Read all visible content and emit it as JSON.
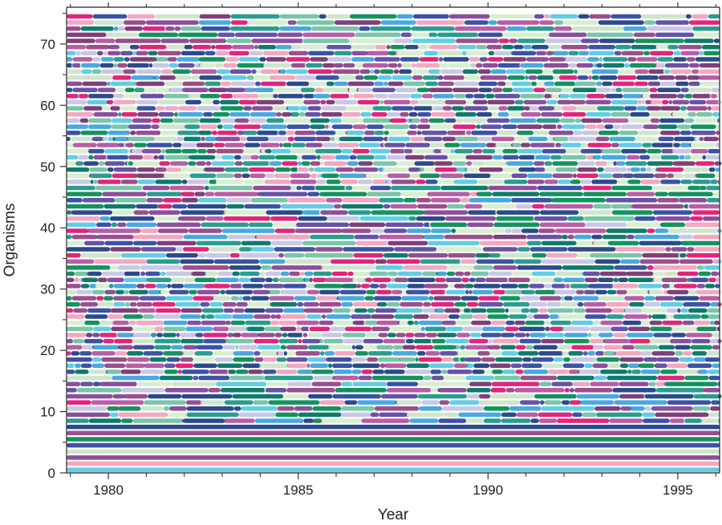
{
  "chart_data": {
    "type": "bar",
    "title": "",
    "xlabel": "Year",
    "ylabel": "Organisms",
    "xlim": [
      1978.9,
      1996.1
    ],
    "ylim": [
      0,
      76
    ],
    "x_major_ticks": [
      1980,
      1985,
      1990,
      1995
    ],
    "x_minor_ticks": [
      1979,
      1981,
      1982,
      1983,
      1984,
      1986,
      1987,
      1988,
      1989,
      1991,
      1992,
      1993,
      1994,
      1996
    ],
    "y_major_ticks": [
      0,
      10,
      20,
      30,
      40,
      50,
      60,
      70
    ],
    "y_minor_ticks": [
      5,
      15,
      25,
      35,
      45,
      55,
      65,
      75
    ],
    "x_tick_labels": [
      "1980",
      "1985",
      "1990",
      "1995"
    ],
    "y_tick_labels": [
      "0",
      "10",
      "20",
      "30",
      "40",
      "50",
      "60",
      "70"
    ],
    "grid": false,
    "legend": "none",
    "rows": 75,
    "row_start_year": 1978.9,
    "row_end_year": 1996.1,
    "palette": [
      "#3b53a4",
      "#6652a6",
      "#8b4f9c",
      "#9b4e8e",
      "#e3247b",
      "#f4a7c1",
      "#79c6a9",
      "#0e7b6c",
      "#13935d",
      "#2a9d8f",
      "#61cde6",
      "#49a9df",
      "#c9c8e8",
      "#d7efcf",
      "#cfe6cc",
      "#7f3f7b",
      "#b95da6",
      "#2b4a8a"
    ]
  }
}
